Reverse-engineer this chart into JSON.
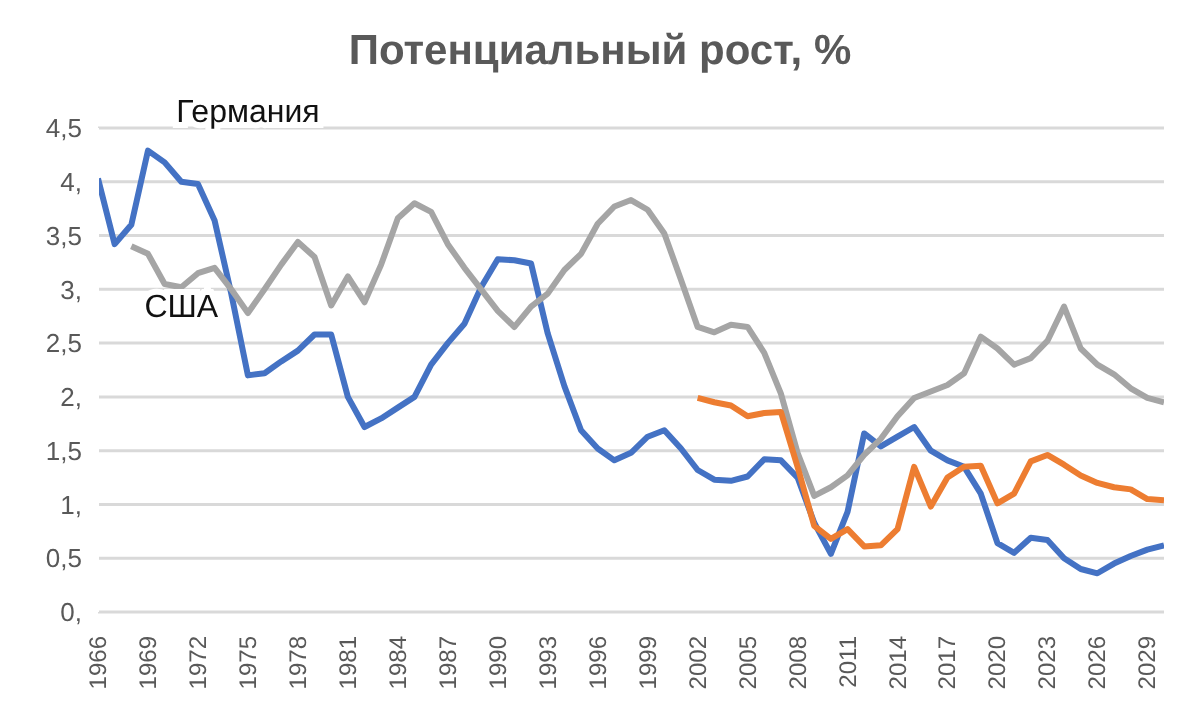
{
  "chart_data": {
    "type": "line",
    "title": "Потенциальный рост, %",
    "x": [
      1966,
      1967,
      1968,
      1969,
      1970,
      1971,
      1972,
      1973,
      1974,
      1975,
      1976,
      1977,
      1978,
      1979,
      1980,
      1981,
      1982,
      1983,
      1984,
      1985,
      1986,
      1987,
      1988,
      1989,
      1990,
      1991,
      1992,
      1993,
      1994,
      1995,
      1996,
      1997,
      1998,
      1999,
      2000,
      2001,
      2002,
      2003,
      2004,
      2005,
      2006,
      2007,
      2008,
      2009,
      2010,
      2011,
      2012,
      2013,
      2014,
      2015,
      2016,
      2017,
      2018,
      2019,
      2020,
      2021,
      2022,
      2023,
      2024,
      2025,
      2026,
      2027,
      2028,
      2029,
      2030
    ],
    "series": [
      {
        "name": "Германия",
        "color": "#4472c4",
        "values": [
          4.03,
          3.42,
          3.6,
          4.29,
          4.18,
          4.0,
          3.98,
          3.64,
          2.96,
          2.2,
          2.22,
          2.33,
          2.43,
          2.58,
          2.58,
          2.0,
          1.72,
          1.8,
          1.9,
          2.0,
          2.3,
          2.5,
          2.68,
          3.02,
          3.28,
          3.27,
          3.24,
          2.59,
          2.1,
          1.69,
          1.52,
          1.41,
          1.48,
          1.63,
          1.69,
          1.52,
          1.32,
          1.23,
          1.22,
          1.26,
          1.42,
          1.41,
          1.25,
          0.83,
          0.54,
          0.93,
          1.66,
          1.54,
          1.63,
          1.72,
          1.5,
          1.41,
          1.35,
          1.1,
          0.64,
          0.55,
          0.69,
          0.67,
          0.5,
          0.4,
          0.36,
          0.45,
          0.52,
          0.58,
          0.62
        ]
      },
      {
        "name": "США",
        "color": "#a5a5a5",
        "values": [
          null,
          null,
          3.4,
          3.33,
          3.05,
          3.02,
          3.15,
          3.2,
          3.0,
          2.78,
          3.0,
          3.23,
          3.44,
          3.3,
          2.85,
          3.12,
          2.88,
          3.23,
          3.66,
          3.8,
          3.72,
          3.42,
          3.2,
          3.0,
          2.8,
          2.65,
          2.84,
          2.96,
          3.18,
          3.33,
          3.61,
          3.77,
          3.83,
          3.74,
          3.52,
          3.09,
          2.65,
          2.6,
          2.67,
          2.65,
          2.41,
          2.03,
          1.48,
          1.08,
          1.16,
          1.27,
          1.46,
          1.61,
          1.82,
          1.99,
          2.05,
          2.11,
          2.22,
          2.56,
          2.45,
          2.3,
          2.36,
          2.52,
          2.84,
          2.45,
          2.3,
          2.21,
          2.08,
          1.99,
          1.95
        ]
      },
      {
        "color": "#ed7d31",
        "values": [
          null,
          null,
          null,
          null,
          null,
          null,
          null,
          null,
          null,
          null,
          null,
          null,
          null,
          null,
          null,
          null,
          null,
          null,
          null,
          null,
          null,
          null,
          null,
          null,
          null,
          null,
          null,
          null,
          null,
          null,
          null,
          null,
          null,
          null,
          null,
          null,
          1.99,
          1.95,
          1.92,
          1.82,
          1.85,
          1.86,
          1.35,
          0.8,
          0.68,
          0.77,
          0.61,
          0.62,
          0.77,
          1.35,
          0.98,
          1.25,
          1.35,
          1.36,
          1.01,
          1.1,
          1.4,
          1.46,
          1.37,
          1.27,
          1.2,
          1.16,
          1.14,
          1.05,
          1.04
        ]
      }
    ],
    "xlim": [
      1966,
      2030
    ],
    "xticks": [
      1966,
      1969,
      1972,
      1975,
      1978,
      1981,
      1984,
      1987,
      1990,
      1993,
      1996,
      1999,
      2002,
      2005,
      2008,
      2011,
      2014,
      2017,
      2020,
      2023,
      2026,
      2029
    ],
    "ylim": [
      0,
      4.5
    ],
    "yticks": [
      {
        "value": 0,
        "label": "0,"
      },
      {
        "value": 0.5,
        "label": "0,5"
      },
      {
        "value": 1,
        "label": "1,"
      },
      {
        "value": 1.5,
        "label": "1,5"
      },
      {
        "value": 2,
        "label": "2,"
      },
      {
        "value": 2.5,
        "label": "2,5"
      },
      {
        "value": 3,
        "label": "3,"
      },
      {
        "value": 3.5,
        "label": "3,5"
      },
      {
        "value": 4,
        "label": "4,"
      },
      {
        "value": 4.5,
        "label": "4,5"
      }
    ],
    "grid": "y",
    "legend": false,
    "marker": "none",
    "line_style": "solid"
  }
}
